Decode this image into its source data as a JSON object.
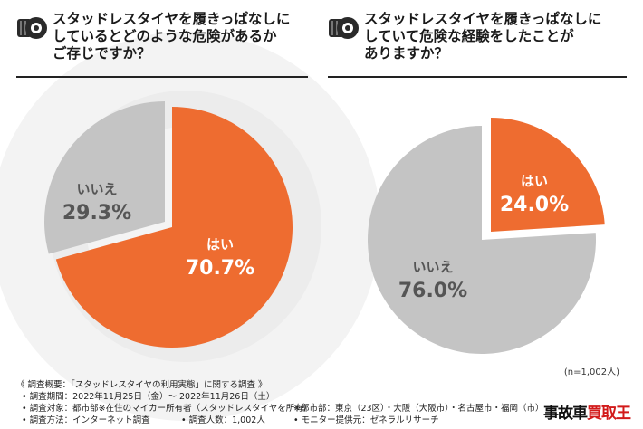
{
  "chart_data": [
    {
      "type": "pie",
      "title": "スタッドレスタイヤを履きっぱなしにしているとどのような危険があるかご存じですか？",
      "title_lines": [
        "スタッドレスタイヤを履きっぱなしに",
        "しているとどのような危険があるか",
        "ご存じですか？"
      ],
      "slices": [
        {
          "label": "はい",
          "value": 70.7,
          "value_text": "70.7%",
          "color": "#ee6c30"
        },
        {
          "label": "いいえ",
          "value": 29.3,
          "value_text": "29.3%",
          "color": "#c4c4c4"
        }
      ]
    },
    {
      "type": "pie",
      "title": "スタッドレスタイヤを履きっぱなしにしていて危険な経験をしたことがありますか？",
      "title_lines": [
        "スタッドレスタイヤを履きっぱなしに",
        "していて危険な経験をしたことが",
        "ありますか？"
      ],
      "slices": [
        {
          "label": "はい",
          "value": 24.0,
          "value_text": "24.0%",
          "color": "#ee6c30"
        },
        {
          "label": "いいえ",
          "value": 76.0,
          "value_text": "76.0%",
          "color": "#c4c4c4"
        }
      ]
    }
  ],
  "sample_note": "(n=1,002人)",
  "footer": {
    "survey_title": "《 調査概要：「スタッドレスタイヤの利用実態」に関する調査 》",
    "period": "• 調査期間：2022年11月25日（金）～ 2022年11月26日（土）",
    "target": "• 調査対象：都市部※在住のマイカー所有者（スタッドレスタイヤを所有）",
    "method": "• 調査方法：インターネット調査",
    "count": "• 調査人数：1,002人",
    "cities": "※都市部：東京（23区）・大阪（大阪市）・名古屋市・福岡（市）",
    "monitor": "• モニター提供元：ゼネラルリサーチ"
  },
  "brand": {
    "part1": "事故車",
    "part2": "買取王"
  },
  "icon": "tire-icon"
}
